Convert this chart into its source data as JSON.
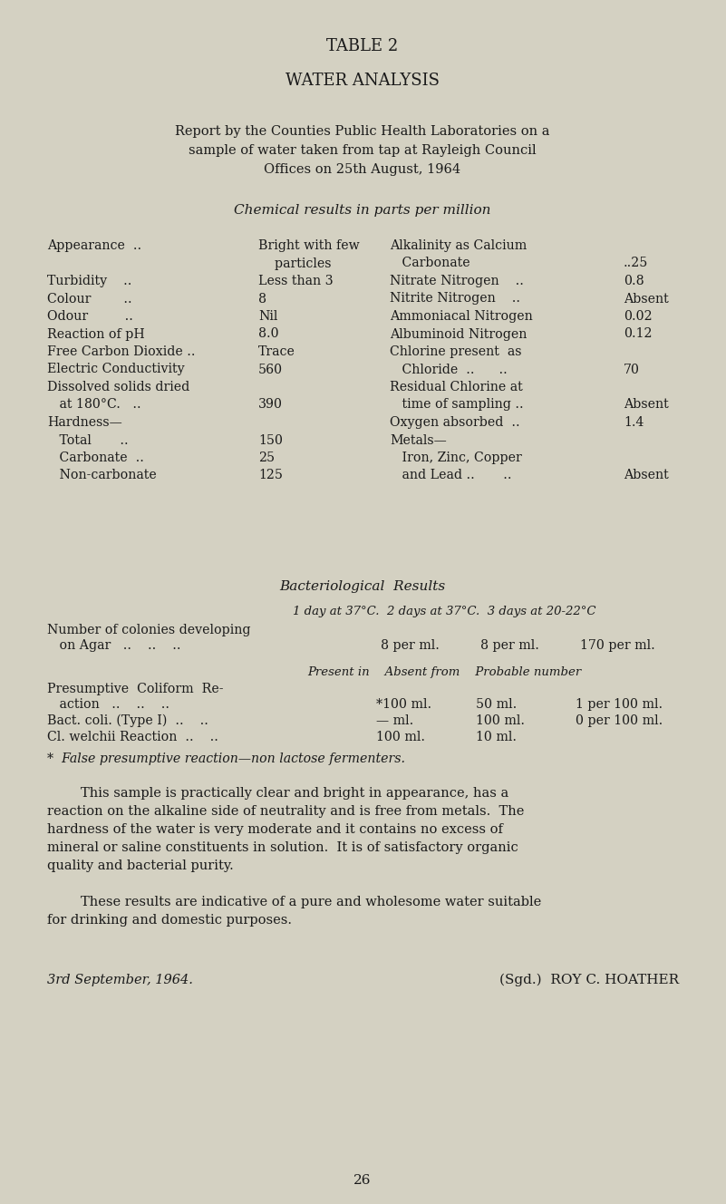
{
  "bg_color": "#d4d1c2",
  "text_color": "#1a1a1a",
  "title1": "TABLE 2",
  "title2": "WATER ANALYSIS",
  "subtitle_lines": [
    "Report by the Counties Public Health Laboratories on a",
    "sample of water taken from tap at Rayleigh Council",
    "Offices on 25th August, 1964"
  ],
  "section1": "Chemical results in parts per million",
  "section2": "Bacteriological  Results",
  "left_rows": [
    {
      "label": "Appearance  ..",
      "dots": "..",
      "val": "Bright with few"
    },
    {
      "label": "",
      "dots": "",
      "val": "    particles"
    },
    {
      "label": "Turbidity    ..",
      "dots": "..",
      "val": "Less than 3"
    },
    {
      "label": "Colour        ..",
      "dots": "..",
      "val": "8"
    },
    {
      "label": "Odour         ..",
      "dots": "..",
      "val": "Nil"
    },
    {
      "label": "Reaction of pH",
      "dots": "..",
      "val": "8.0"
    },
    {
      "label": "Free Carbon Dioxide ..",
      "dots": "",
      "val": "Trace"
    },
    {
      "label": "Electric Conductivity",
      "dots": "",
      "val": "560"
    },
    {
      "label": "Dissolved solids dried",
      "dots": "",
      "val": ""
    },
    {
      "label": "   at 180°C.   ..",
      "dots": "..",
      "val": "390"
    },
    {
      "label": "Hardness—",
      "dots": "",
      "val": ""
    },
    {
      "label": "   Total       ..",
      "dots": "..",
      "val": "150"
    },
    {
      "label": "   Carbonate  ..",
      "dots": "..",
      "val": "25"
    },
    {
      "label": "   Non-carbonate",
      "dots": "..",
      "val": "125"
    }
  ],
  "right_rows": [
    {
      "label": "Alkalinity as Calcium",
      "val": ""
    },
    {
      "label": "   Carbonate",
      "val": "..25"
    },
    {
      "label": "Nitrate Nitrogen    ..",
      "val": "0.8"
    },
    {
      "label": "Nitrite Nitrogen    ..",
      "val": "Absent"
    },
    {
      "label": "Ammoniacal Nitrogen",
      "val": "0.02"
    },
    {
      "label": "Albuminoid Nitrogen",
      "val": "0.12"
    },
    {
      "label": "Chlorine present  as",
      "val": ""
    },
    {
      "label": "   Chloride  ..      ..",
      "val": "70"
    },
    {
      "label": "Residual Chlorine at",
      "val": ""
    },
    {
      "label": "   time of sampling ..",
      "val": "Absent"
    },
    {
      "label": "Oxygen absorbed  ..",
      "val": "1.4"
    },
    {
      "label": "Metals—",
      "val": ""
    },
    {
      "label": "   Iron, Zinc, Copper",
      "val": ""
    },
    {
      "label": "   and Lead ..       ..",
      "val": "Absent"
    }
  ],
  "bact_col_header": "1 day at 37°C.  2 days at 37°C.  3 days at 20-22°C",
  "bact_col_subheader": "Present in    Absent from    Probable number",
  "para1_lines": [
    "        This sample is practically clear and bright in appearance, has a",
    "reaction on the alkaline side of neutrality and is free from metals.  The",
    "hardness of the water is very moderate and it contains no excess of",
    "mineral or saline constituents in solution.  It is of satisfactory organic",
    "quality and bacterial purity."
  ],
  "para2_lines": [
    "        These results are indicative of a pure and wholesome water suitable",
    "for drinking and domestic purposes."
  ],
  "date": "3rd September, 1964.",
  "signatory": "(Sgd.)  ROY C. HOATHER",
  "page": "26"
}
